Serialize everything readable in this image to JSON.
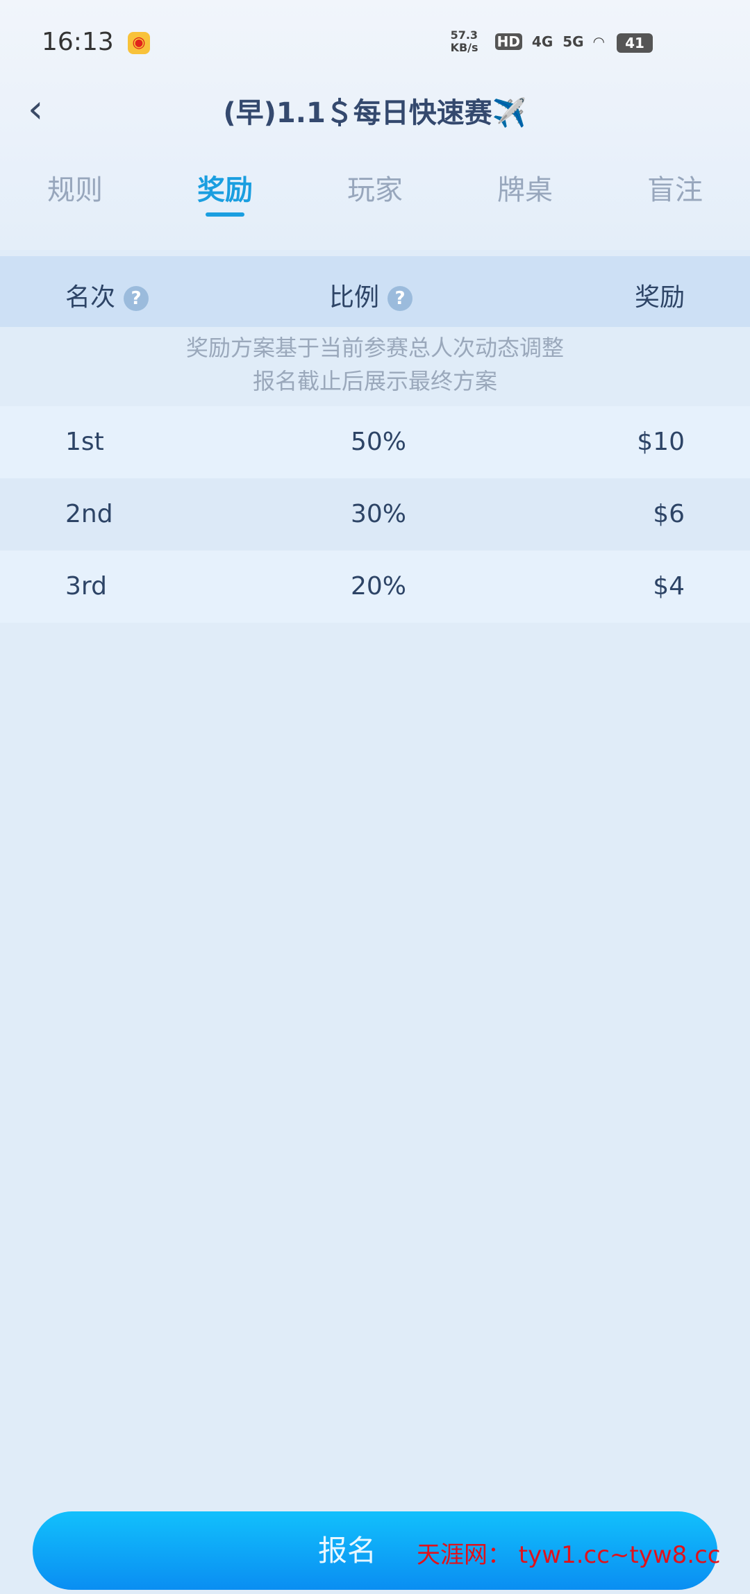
{
  "status_bar": {
    "time": "16:13",
    "net_speed": "57.3 KB/s",
    "hd": "HD",
    "sig1": "4G",
    "sig2": "5G",
    "battery": "41"
  },
  "header": {
    "title": "(早)1.1＄每日快速赛✈️"
  },
  "tabs": [
    {
      "label": "规则"
    },
    {
      "label": "奖励"
    },
    {
      "label": "玩家"
    },
    {
      "label": "牌桌"
    },
    {
      "label": "盲注"
    }
  ],
  "table": {
    "headers": {
      "rank": "名次",
      "ratio": "比例",
      "reward": "奖励"
    },
    "notes": [
      "奖励方案基于当前参赛总人次动态调整",
      "报名截止后展示最终方案"
    ],
    "rows": [
      {
        "rank": "1st",
        "ratio": "50%",
        "reward": "$10"
      },
      {
        "rank": "2nd",
        "ratio": "30%",
        "reward": "$6"
      },
      {
        "rank": "3rd",
        "ratio": "20%",
        "reward": "$4"
      }
    ]
  },
  "register_button": "报名",
  "watermark": "天涯网： tyw1.cc~tyw8.cc",
  "colors": {
    "accent": "#1a9ee0",
    "button": "#0a9cf6"
  }
}
